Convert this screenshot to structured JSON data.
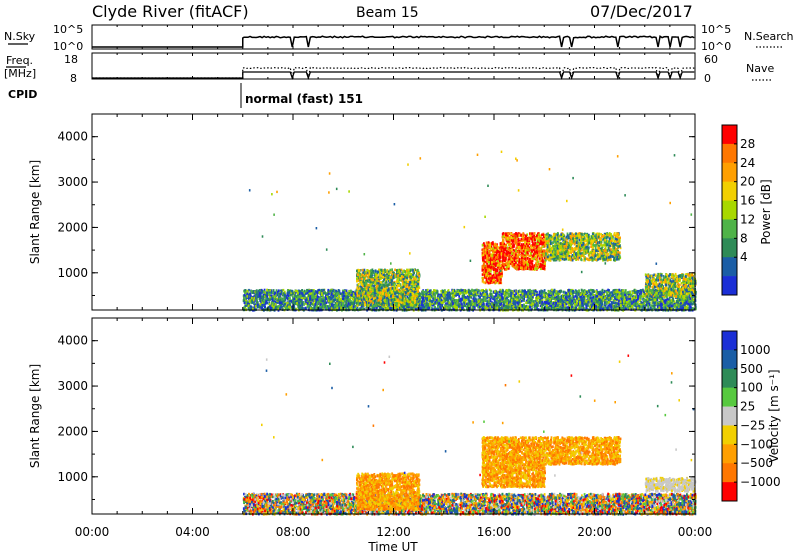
{
  "header": {
    "title": "Clyde River (fitACF)",
    "beam": "Beam 15",
    "date": "07/Dec/2017"
  },
  "top_panels": {
    "nsky_label": "N.Sky",
    "nsky_ticks": [
      "10^5",
      "10^0"
    ],
    "nsearch_label": "N.Search",
    "freq_label_1": "Freq.",
    "freq_label_2": "[MHz]",
    "freq_ticks": [
      "18",
      "8"
    ],
    "nave_label": "Nave",
    "nave_ticks": [
      "60",
      "0"
    ],
    "cpid_label": "CPID",
    "cpid_value": "normal (fast) 151"
  },
  "chart_data": [
    {
      "type": "heatmap",
      "panel": "power",
      "ylabel": "Slant Range [km]",
      "xlabel": "",
      "x_ticks": [
        "00:00",
        "04:00",
        "08:00",
        "12:00",
        "16:00",
        "20:00",
        "00:00"
      ],
      "xlim_hours": [
        0,
        24
      ],
      "ylim_km": [
        180,
        4500
      ],
      "y_ticks": [
        1000,
        2000,
        3000,
        4000
      ],
      "colorbar_label": "Power [dB]",
      "colorbar_ticks": [
        "28",
        "24",
        "20",
        "16",
        "12",
        "8",
        "4"
      ],
      "colorbar_colors": [
        "#ff0000",
        "#ff7700",
        "#ff9f00",
        "#f2cf00",
        "#a8d800",
        "#4fb348",
        "#2e8b57",
        "#1b5ea6",
        "#1b2fd6"
      ],
      "data_window_hours": [
        6,
        24
      ],
      "echo_regions": [
        {
          "t_start": 6.0,
          "t_end": 24.0,
          "range_lo": 200,
          "range_hi": 650,
          "level": "low"
        },
        {
          "t_start": 10.5,
          "t_end": 13.0,
          "range_lo": 300,
          "range_hi": 1100,
          "level": "mid"
        },
        {
          "t_start": 15.5,
          "t_end": 16.3,
          "range_lo": 800,
          "range_hi": 1700,
          "level": "high"
        },
        {
          "t_start": 16.3,
          "t_end": 18.0,
          "range_lo": 1100,
          "range_hi": 1900,
          "level": "high"
        },
        {
          "t_start": 18.0,
          "t_end": 21.0,
          "range_lo": 1300,
          "range_hi": 1900,
          "level": "mid"
        },
        {
          "t_start": 22.0,
          "t_end": 24.0,
          "range_lo": 500,
          "range_hi": 1000,
          "level": "mid"
        }
      ]
    },
    {
      "type": "heatmap",
      "panel": "velocity",
      "ylabel": "Slant Range [km]",
      "xlabel": "Time UT",
      "x_ticks": [
        "00:00",
        "04:00",
        "08:00",
        "12:00",
        "16:00",
        "20:00",
        "00:00"
      ],
      "xlim_hours": [
        0,
        24
      ],
      "ylim_km": [
        180,
        4500
      ],
      "y_ticks": [
        1000,
        2000,
        3000,
        4000
      ],
      "colorbar_label": "Velocity [m s⁻¹]",
      "colorbar_ticks": [
        "1000",
        "500",
        "100",
        "25",
        "−25",
        "−100",
        "−500",
        "−1000"
      ],
      "colorbar_colors": [
        "#1b2fd6",
        "#1b5ea6",
        "#2e8b57",
        "#57c93f",
        "#c8c8c8",
        "#f2cf00",
        "#ff9f00",
        "#ff7700",
        "#ff0000"
      ],
      "data_window_hours": [
        6,
        24
      ],
      "echo_regions": [
        {
          "t_start": 6.0,
          "t_end": 24.0,
          "range_lo": 200,
          "range_hi": 650,
          "level": "low"
        },
        {
          "t_start": 10.5,
          "t_end": 13.0,
          "range_lo": 300,
          "range_hi": 1100,
          "level": "neg"
        },
        {
          "t_start": 15.5,
          "t_end": 18.0,
          "range_lo": 800,
          "range_hi": 1900,
          "level": "neg"
        },
        {
          "t_start": 18.0,
          "t_end": 21.0,
          "range_lo": 1300,
          "range_hi": 1900,
          "level": "neg"
        },
        {
          "t_start": 22.0,
          "t_end": 24.0,
          "range_lo": 700,
          "range_hi": 1000,
          "level": "zero"
        }
      ]
    }
  ]
}
